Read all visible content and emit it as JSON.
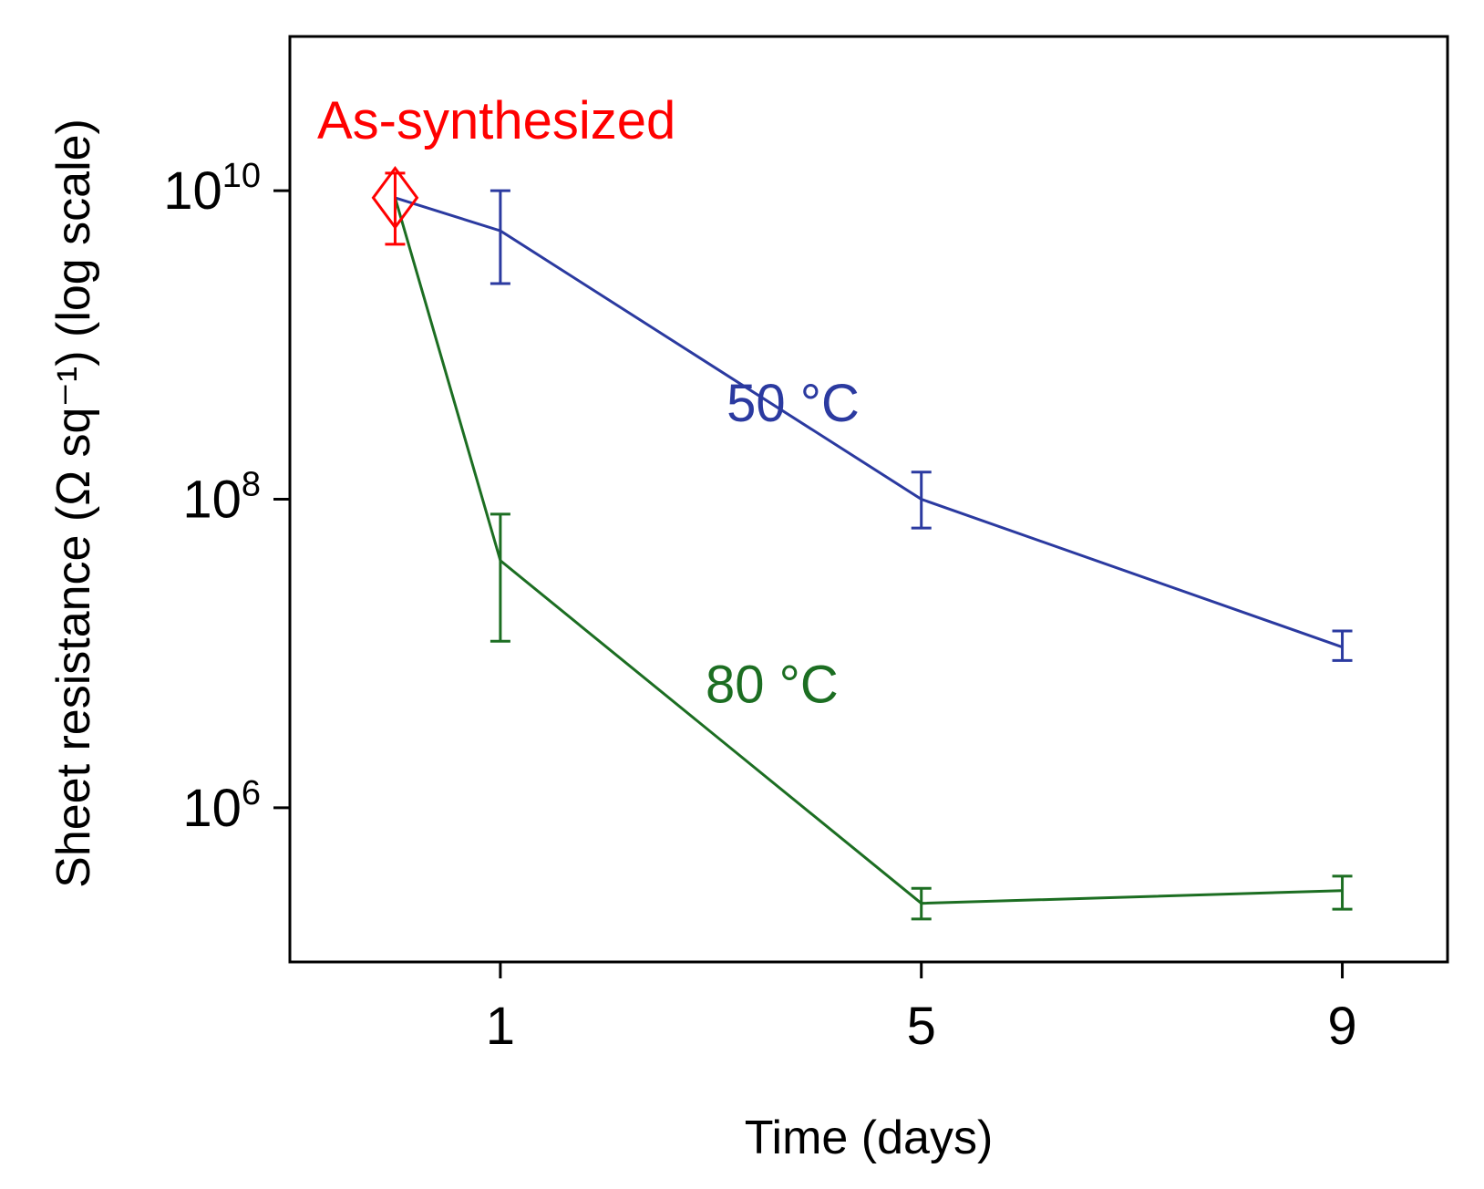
{
  "chart_data": {
    "type": "line",
    "xlabel": "Time (days)",
    "ylabel": "Sheet resistance (Ω sq⁻¹) (log scale)",
    "yscale": "log",
    "xlim": [
      -1,
      10
    ],
    "ylim": [
      100000.0,
      100000000000.0
    ],
    "xticks": [
      {
        "value": 1,
        "label": "1"
      },
      {
        "value": 5,
        "label": "5"
      },
      {
        "value": 9,
        "label": "9"
      }
    ],
    "yticks": [
      {
        "value": 10000000000.0,
        "base": "10",
        "exp": "10"
      },
      {
        "value": 100000000.0,
        "base": "10",
        "exp": "8"
      },
      {
        "value": 1000000.0,
        "base": "10",
        "exp": "6"
      }
    ],
    "initial": {
      "name": "As-synthesized",
      "x": 0,
      "y": 9000000000.0,
      "err": [
        4500000000.0,
        13000000000.0
      ],
      "color": "#ff0000",
      "marker": "diamond"
    },
    "series": [
      {
        "name": "50 °C",
        "color": "#2b3aa0",
        "label_pos": {
          "x": 3.15,
          "y": 320000000.0
        },
        "points": [
          {
            "x": 0,
            "y": 9000000000.0
          },
          {
            "x": 1,
            "y": 5500000000.0,
            "err": [
              2500000000.0,
              10000000000.0
            ]
          },
          {
            "x": 5,
            "y": 100000000.0,
            "err": [
              65000000.0,
              150000000.0
            ]
          },
          {
            "x": 9,
            "y": 11000000.0,
            "err": [
              9000000.0,
              14000000.0
            ]
          }
        ]
      },
      {
        "name": "80 °C",
        "color": "#1c6e22",
        "label_pos": {
          "x": 2.95,
          "y": 4800000.0
        },
        "points": [
          {
            "x": 0,
            "y": 9000000000.0
          },
          {
            "x": 1,
            "y": 40000000.0,
            "err": [
              12000000.0,
              80000000.0
            ]
          },
          {
            "x": 5,
            "y": 240000.0,
            "err": [
              190000.0,
              300000.0
            ]
          },
          {
            "x": 9,
            "y": 290000.0,
            "err": [
              220000.0,
              360000.0
            ]
          }
        ]
      }
    ]
  }
}
